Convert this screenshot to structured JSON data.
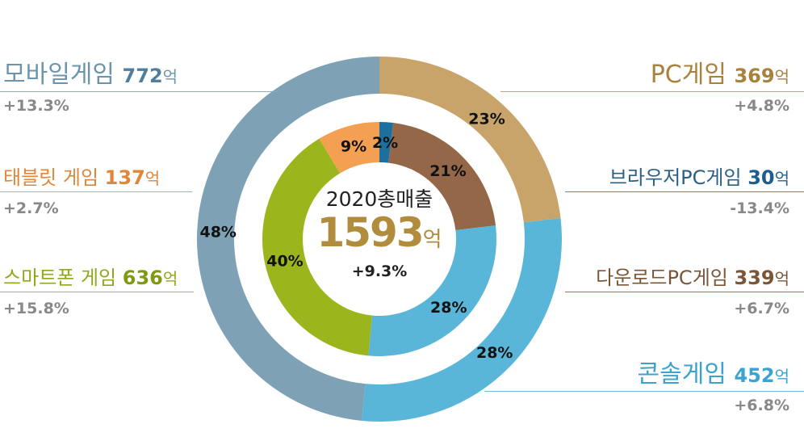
{
  "chart_data": {
    "type": "donut",
    "title": "",
    "total": {
      "title": "2020총매출",
      "value": "1593",
      "unit": "억",
      "change": "+9.3%"
    },
    "outer_ring": [
      {
        "name": "PC게임",
        "value": 369,
        "percent_label": "23%",
        "color": "#c9a46a"
      },
      {
        "name": "콘솔게임",
        "value": 452,
        "percent_label": "28%",
        "color": "#5ab6d8"
      },
      {
        "name": "모바일게임",
        "value": 772,
        "percent_label": "48%",
        "color": "#7ea1b6"
      }
    ],
    "inner_ring": [
      {
        "name": "브라우저PC게임",
        "value": 30,
        "percent_label": "2%",
        "color": "#1f6f9e"
      },
      {
        "name": "다운로드PC게임",
        "value": 339,
        "percent_label": "21%",
        "color": "#946748"
      },
      {
        "name": "콘솔게임",
        "value": 452,
        "percent_label": "28%",
        "color": "#5ab6d8"
      },
      {
        "name": "스마트폰 게임",
        "value": 636,
        "percent_label": "40%",
        "color": "#9bb61d"
      },
      {
        "name": "태블릿 게임",
        "value": 137,
        "percent_label": "9%",
        "color": "#f4a052"
      }
    ]
  },
  "callouts": {
    "mobile": {
      "name": "모바일게임 ",
      "value": "772",
      "unit": "억",
      "change": "+13.3%",
      "name_color": "#6b95ab",
      "value_color": "#4e7f9c"
    },
    "tablet": {
      "name": "태블릿 게임 ",
      "value": "137",
      "unit": "억",
      "change": "+2.7%",
      "name_color": "#e0863a",
      "value_color": "#e0863a"
    },
    "phone": {
      "name": "스마트폰 게임 ",
      "value": "636",
      "unit": "억",
      "change": "+15.8%",
      "name_color": "#8fa91c",
      "value_color": "#7f9a12"
    },
    "pc": {
      "name": "PC게임 ",
      "value": "369",
      "unit": "억",
      "change": "+4.8%",
      "name_color": "#a8813a",
      "value_color": "#a8813a"
    },
    "browser": {
      "name": "브라우저PC게임 ",
      "value": "30",
      "unit": "억",
      "change": "-13.4%",
      "name_color": "#2a5f86",
      "value_color": "#1e5e8c"
    },
    "download": {
      "name": "다운로드PC게임 ",
      "value": "339",
      "unit": "억",
      "change": "+6.7%",
      "name_color": "#7a5638",
      "value_color": "#7a5638"
    },
    "console": {
      "name": "콘솔게임 ",
      "value": "452",
      "unit": "억",
      "change": "+6.8%",
      "name_color": "#3aa3cf",
      "value_color": "#3aa3cf"
    }
  }
}
